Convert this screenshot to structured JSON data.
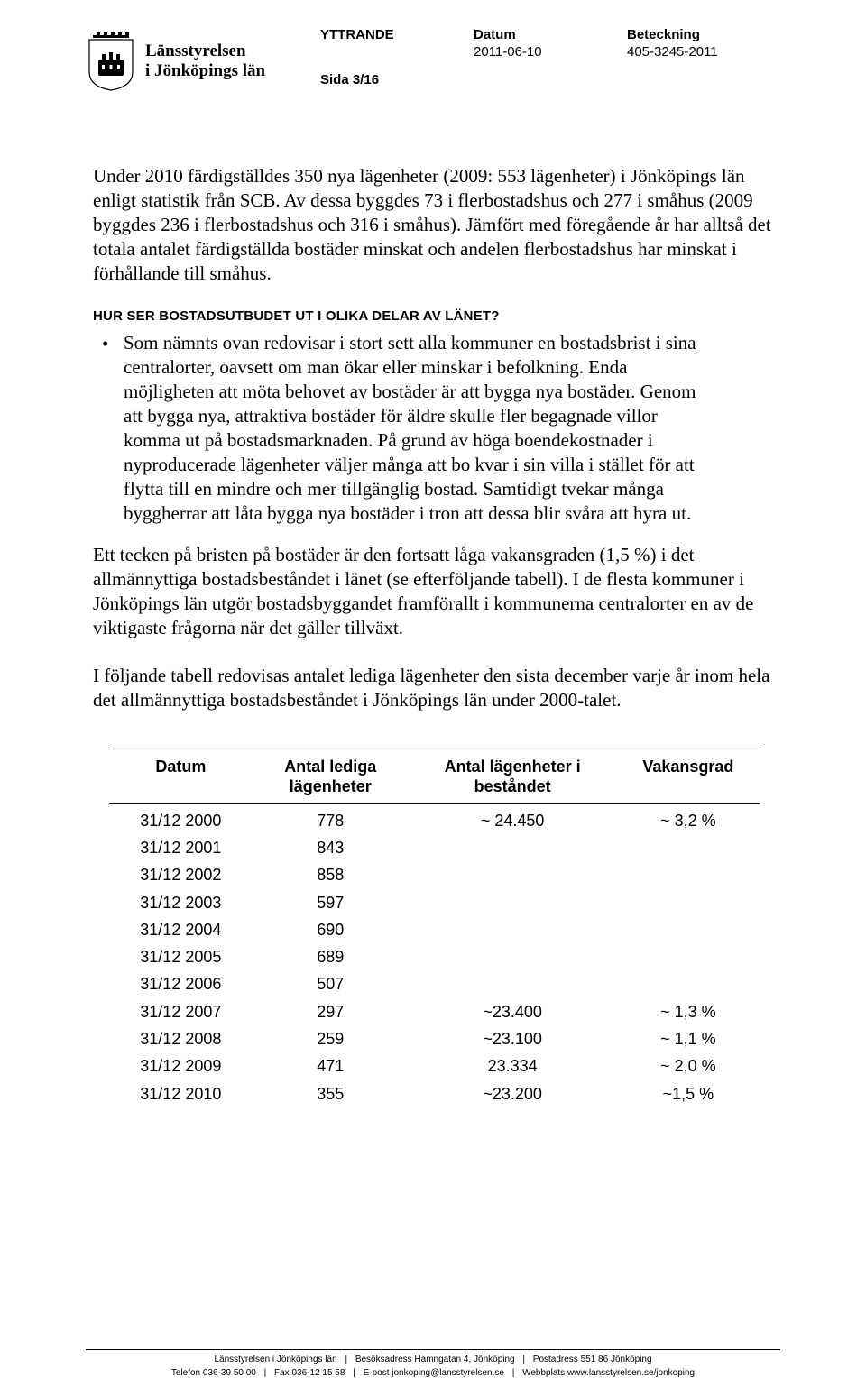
{
  "header": {
    "org_line1": "Länsstyrelsen",
    "org_line2": "i Jönköpings län",
    "doc_type_label": "YTTRANDE",
    "date_label": "Datum",
    "date_value": "2011-06-10",
    "ref_label": "Beteckning",
    "ref_value": "405-3245-2011",
    "page_label": "Sida 3/16"
  },
  "body": {
    "p1": "Under 2010 färdigställdes 350 nya lägenheter (2009: 553 lägenheter) i Jönköpings län enligt statistik från SCB. Av dessa byggdes 73 i flerbostadshus och 277 i småhus (2009 byggdes 236 i flerbostadshus och 316 i småhus). Jämfört med föregående år har alltså det totala antalet färdigställda bostäder minskat och andelen flerbostadshus har minskat i förhållande till småhus.",
    "section_title": "HUR SER BOSTADSUTBUDET UT I OLIKA DELAR AV LÄNET?",
    "bullet": "Som nämnts ovan redovisar i stort sett alla kommuner en bostadsbrist i sina centralorter, oavsett om man ökar eller minskar i befolkning. Enda möjligheten att möta behovet av bostäder är att bygga nya bostäder. Genom att bygga nya, attraktiva bostäder för äldre skulle fler begagnade villor komma ut på bostadsmarknaden. På grund av höga boendekostnader i nyproducerade lägenheter väljer många att bo kvar i sin villa i stället för att flytta till en mindre och mer tillgänglig bostad. Samtidigt tvekar många byggherrar att låta bygga nya bostäder i tron att dessa blir svåra att hyra ut.",
    "p2": "Ett tecken på bristen på bostäder är den fortsatt låga vakansgraden (1,5 %) i det allmännyttiga bostadsbeståndet i länet (se efterföljande tabell). I de flesta kommuner i Jönköpings län utgör bostadsbyggandet framförallt i kommunerna centralorter en av de viktigaste frågorna när det gäller tillväxt.",
    "p3": "I följande tabell redovisas antalet lediga lägenheter den sista december varje år inom hela det allmännyttiga bostadsbeståndet i Jönköpings län under 2000-talet."
  },
  "table": {
    "headers": {
      "c1": "Datum",
      "c2a": "Antal lediga",
      "c2b": "lägenheter",
      "c3a": "Antal lägenheter i",
      "c3b": "beståndet",
      "c4": "Vakansgrad"
    },
    "rows": [
      {
        "c1": "31/12 2000",
        "c2": "778",
        "c3": "~ 24.450",
        "c4": "~ 3,2 %"
      },
      {
        "c1": "31/12 2001",
        "c2": "843",
        "c3": "",
        "c4": ""
      },
      {
        "c1": "31/12 2002",
        "c2": "858",
        "c3": "",
        "c4": ""
      },
      {
        "c1": "31/12 2003",
        "c2": "597",
        "c3": "",
        "c4": ""
      },
      {
        "c1": "31/12 2004",
        "c2": "690",
        "c3": "",
        "c4": ""
      },
      {
        "c1": "31/12 2005",
        "c2": "689",
        "c3": "",
        "c4": ""
      },
      {
        "c1": "31/12 2006",
        "c2": "507",
        "c3": "",
        "c4": ""
      },
      {
        "c1": "31/12 2007",
        "c2": "297",
        "c3": "~23.400",
        "c4": "~ 1,3 %"
      },
      {
        "c1": "31/12 2008",
        "c2": "259",
        "c3": "~23.100",
        "c4": "~ 1,1 %"
      },
      {
        "c1": "31/12 2009",
        "c2": "471",
        "c3": "  23.334",
        "c4": "~ 2,0 %"
      },
      {
        "c1": "31/12 2010",
        "c2": "355",
        "c3": "~23.200",
        "c4": "~1,5 %"
      }
    ]
  },
  "footer": {
    "line1_a": "Länsstyrelsen i Jönköpings län",
    "line1_b": "Besöksadress Hamngatan 4, Jönköping",
    "line1_c": "Postadress 551 86 Jönköping",
    "line2_a": "Telefon 036-39 50 00",
    "line2_b": "Fax 036-12 15 58",
    "line2_c": "E-post jonkoping@lansstyrelsen.se",
    "line2_d": "Webbplats www.lansstyrelsen.se/jonkoping"
  }
}
